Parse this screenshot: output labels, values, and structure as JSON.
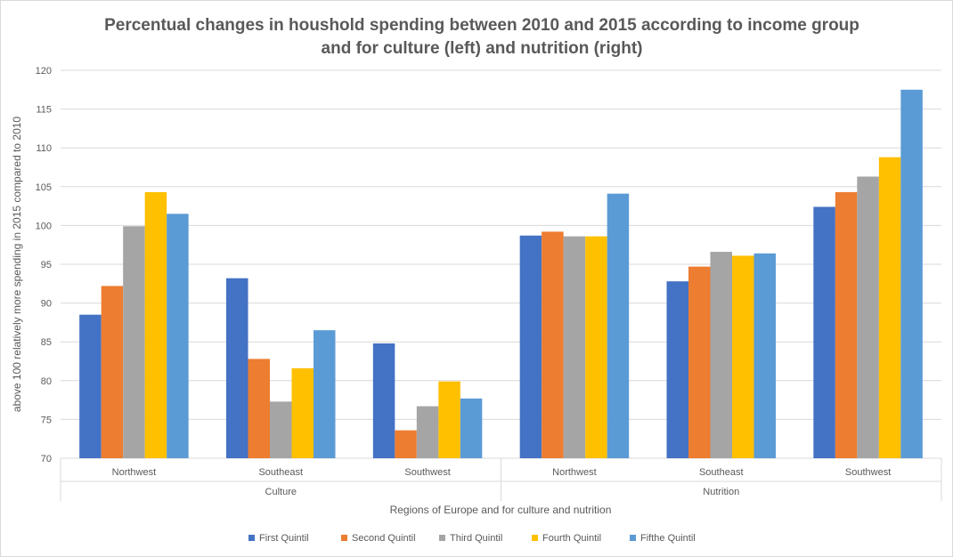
{
  "chart_data": {
    "type": "bar",
    "title": "Percentual changes in houshold spending between 2010 and 2015 according to income group and for culture (left) and nutrition (right)",
    "title_lines": [
      "Percentual changes in houshold spending between 2010 and 2015 according to income group",
      "and for culture (left) and nutrition (right)"
    ],
    "ylabel": "above 100 relatively more spending in 2015 compared to 2010",
    "xlabel": "Regions of Europe and for culture and nutrition",
    "ylim": [
      70,
      120
    ],
    "yticks": [
      70,
      75,
      80,
      85,
      90,
      95,
      100,
      105,
      110,
      115,
      120
    ],
    "grid": true,
    "legend_position": "bottom",
    "groups": [
      "Culture",
      "Nutrition"
    ],
    "categories": [
      "Northwest",
      "Southeast",
      "Southwest",
      "Northwest",
      "Southeast",
      "Southwest"
    ],
    "series": [
      {
        "name": "First Quintil",
        "color": "#4472c4",
        "values": [
          88.5,
          93.2,
          84.8,
          98.7,
          92.8,
          102.4
        ]
      },
      {
        "name": "Second Quintil",
        "color": "#ed7d31",
        "values": [
          92.2,
          82.8,
          73.6,
          99.2,
          94.7,
          104.3
        ]
      },
      {
        "name": "Third Quintil",
        "color": "#a5a5a5",
        "values": [
          99.9,
          77.3,
          76.7,
          98.6,
          96.6,
          106.3
        ]
      },
      {
        "name": "Fourth Quintil",
        "color": "#ffc000",
        "values": [
          104.3,
          81.6,
          79.9,
          98.6,
          96.1,
          108.8
        ]
      },
      {
        "name": "Fifthe Quintil",
        "color": "#5b9bd5",
        "values": [
          101.5,
          86.5,
          77.7,
          104.1,
          96.4,
          117.5
        ]
      }
    ]
  }
}
